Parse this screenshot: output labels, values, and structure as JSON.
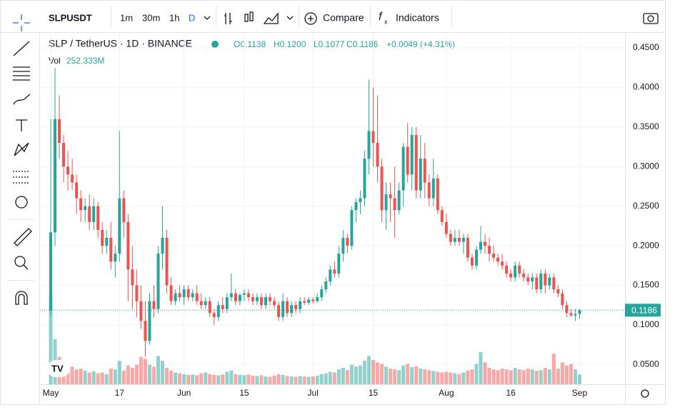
{
  "toolbar": {
    "symbol": "SLPUSDT",
    "intervals": [
      "1m",
      "30m",
      "1h",
      "D"
    ],
    "compare": "Compare",
    "indicators": "Indicators"
  },
  "header": {
    "title": "SLP / TetherUS · 1D · BINANCE",
    "ohlc": [
      "O0.1138",
      "H0.1200",
      "L0.1077",
      "C0.1186",
      "+0.0049 (+4.31%)"
    ],
    "vol_label": "Vol",
    "vol_value": "252.333M"
  },
  "chart_data": {
    "type": "candlestick",
    "up_color": "#26a69a",
    "down_color": "#ef5350",
    "grid": true,
    "x": [
      "May 1",
      "May 2",
      "May 3",
      "May 4",
      "May 5",
      "May 6",
      "May 7",
      "May 8",
      "May 9",
      "May 10",
      "May 11",
      "May 12",
      "May 13",
      "May 14",
      "May 15",
      "May 16",
      "May 17",
      "May 18",
      "May 19",
      "May 20",
      "May 21",
      "May 22",
      "May 23",
      "May 24",
      "May 25",
      "May 26",
      "May 27",
      "May 28",
      "May 29",
      "May 30",
      "May 31",
      "Jun 1",
      "Jun 2",
      "Jun 3",
      "Jun 4",
      "Jun 5",
      "Jun 6",
      "Jun 7",
      "Jun 8",
      "Jun 9",
      "Jun 10",
      "Jun 11",
      "Jun 12",
      "Jun 13",
      "Jun 14",
      "Jun 15",
      "Jun 16",
      "Jun 17",
      "Jun 18",
      "Jun 19",
      "Jun 20",
      "Jun 21",
      "Jun 22",
      "Jun 23",
      "Jun 24",
      "Jun 25",
      "Jun 26",
      "Jun 27",
      "Jun 28",
      "Jun 29",
      "Jun 30",
      "Jul 1",
      "Jul 2",
      "Jul 3",
      "Jul 4",
      "Jul 5",
      "Jul 6",
      "Jul 7",
      "Jul 8",
      "Jul 9",
      "Jul 10",
      "Jul 11",
      "Jul 12",
      "Jul 13",
      "Jul 14",
      "Jul 15",
      "Jul 16",
      "Jul 17",
      "Jul 18",
      "Jul 19",
      "Jul 20",
      "Jul 21",
      "Jul 22",
      "Jul 23",
      "Jul 24",
      "Jul 25",
      "Jul 26",
      "Jul 27",
      "Jul 28",
      "Jul 29",
      "Jul 30",
      "Jul 31",
      "Aug 1",
      "Aug 2",
      "Aug 3",
      "Aug 4",
      "Aug 5",
      "Aug 6",
      "Aug 7",
      "Aug 8",
      "Aug 9",
      "Aug 10",
      "Aug 11",
      "Aug 12",
      "Aug 13",
      "Aug 14",
      "Aug 15",
      "Aug 16",
      "Aug 17",
      "Aug 18",
      "Aug 19",
      "Aug 20",
      "Aug 21",
      "Aug 22",
      "Aug 23",
      "Aug 24",
      "Aug 25",
      "Aug 26",
      "Aug 27",
      "Aug 28",
      "Aug 29",
      "Aug 30",
      "Aug 31",
      "Sep 1"
    ],
    "open": [
      0.118,
      0.217,
      0.36,
      0.33,
      0.3,
      0.29,
      0.28,
      0.26,
      0.245,
      0.25,
      0.23,
      0.25,
      0.22,
      0.2,
      0.21,
      0.18,
      0.19,
      0.26,
      0.23,
      0.17,
      0.15,
      0.13,
      0.105,
      0.08,
      0.13,
      0.12,
      0.19,
      0.21,
      0.15,
      0.13,
      0.14,
      0.135,
      0.145,
      0.135,
      0.14,
      0.13,
      0.125,
      0.13,
      0.115,
      0.11,
      0.125,
      0.12,
      0.135,
      0.14,
      0.13,
      0.138,
      0.14,
      0.135,
      0.13,
      0.135,
      0.125,
      0.135,
      0.13,
      0.125,
      0.11,
      0.13,
      0.115,
      0.125,
      0.12,
      0.13,
      0.128,
      0.132,
      0.13,
      0.135,
      0.145,
      0.155,
      0.17,
      0.165,
      0.19,
      0.21,
      0.2,
      0.245,
      0.255,
      0.26,
      0.31,
      0.345,
      0.33,
      0.3,
      0.245,
      0.265,
      0.26,
      0.245,
      0.27,
      0.325,
      0.29,
      0.34,
      0.27,
      0.31,
      0.28,
      0.26,
      0.285,
      0.245,
      0.23,
      0.215,
      0.205,
      0.21,
      0.205,
      0.21,
      0.185,
      0.175,
      0.195,
      0.205,
      0.2,
      0.19,
      0.185,
      0.18,
      0.175,
      0.165,
      0.16,
      0.175,
      0.165,
      0.16,
      0.155,
      0.16,
      0.145,
      0.165,
      0.15,
      0.16,
      0.145,
      0.14,
      0.125,
      0.115,
      0.112,
      0.1138
    ],
    "high": [
      0.36,
      0.425,
      0.39,
      0.34,
      0.32,
      0.31,
      0.29,
      0.27,
      0.26,
      0.265,
      0.26,
      0.255,
      0.23,
      0.22,
      0.23,
      0.2,
      0.345,
      0.27,
      0.24,
      0.2,
      0.17,
      0.15,
      0.13,
      0.14,
      0.15,
      0.2,
      0.25,
      0.22,
      0.16,
      0.145,
      0.15,
      0.15,
      0.15,
      0.145,
      0.15,
      0.14,
      0.135,
      0.135,
      0.12,
      0.13,
      0.135,
      0.14,
      0.165,
      0.145,
      0.14,
      0.145,
      0.145,
      0.14,
      0.14,
      0.14,
      0.14,
      0.14,
      0.135,
      0.13,
      0.14,
      0.135,
      0.13,
      0.13,
      0.135,
      0.135,
      0.135,
      0.135,
      0.14,
      0.15,
      0.16,
      0.175,
      0.18,
      0.2,
      0.22,
      0.215,
      0.25,
      0.26,
      0.27,
      0.32,
      0.41,
      0.4,
      0.39,
      0.31,
      0.28,
      0.28,
      0.3,
      0.28,
      0.33,
      0.355,
      0.35,
      0.35,
      0.34,
      0.33,
      0.29,
      0.31,
      0.29,
      0.25,
      0.24,
      0.22,
      0.22,
      0.22,
      0.215,
      0.215,
      0.19,
      0.2,
      0.225,
      0.215,
      0.21,
      0.2,
      0.19,
      0.19,
      0.18,
      0.17,
      0.18,
      0.18,
      0.17,
      0.165,
      0.165,
      0.165,
      0.17,
      0.17,
      0.165,
      0.165,
      0.15,
      0.145,
      0.13,
      0.12,
      0.12,
      0.12
    ],
    "low": [
      0.11,
      0.2,
      0.31,
      0.28,
      0.27,
      0.27,
      0.24,
      0.23,
      0.23,
      0.22,
      0.22,
      0.21,
      0.19,
      0.19,
      0.17,
      0.16,
      0.18,
      0.21,
      0.13,
      0.12,
      0.11,
      0.095,
      0.06,
      0.075,
      0.11,
      0.115,
      0.17,
      0.14,
      0.125,
      0.125,
      0.13,
      0.125,
      0.13,
      0.13,
      0.125,
      0.12,
      0.12,
      0.11,
      0.1,
      0.105,
      0.115,
      0.115,
      0.13,
      0.125,
      0.125,
      0.13,
      0.13,
      0.125,
      0.125,
      0.12,
      0.12,
      0.125,
      0.12,
      0.105,
      0.105,
      0.11,
      0.11,
      0.115,
      0.115,
      0.125,
      0.125,
      0.127,
      0.128,
      0.13,
      0.14,
      0.15,
      0.16,
      0.16,
      0.18,
      0.19,
      0.195,
      0.23,
      0.24,
      0.25,
      0.29,
      0.3,
      0.28,
      0.23,
      0.22,
      0.23,
      0.21,
      0.24,
      0.25,
      0.28,
      0.27,
      0.26,
      0.26,
      0.26,
      0.25,
      0.25,
      0.24,
      0.225,
      0.21,
      0.2,
      0.2,
      0.2,
      0.19,
      0.18,
      0.17,
      0.17,
      0.19,
      0.19,
      0.18,
      0.18,
      0.175,
      0.17,
      0.16,
      0.155,
      0.155,
      0.16,
      0.155,
      0.15,
      0.145,
      0.14,
      0.14,
      0.14,
      0.145,
      0.14,
      0.135,
      0.12,
      0.11,
      0.11,
      0.105,
      0.1077
    ],
    "close": [
      0.217,
      0.36,
      0.33,
      0.3,
      0.29,
      0.28,
      0.26,
      0.245,
      0.25,
      0.23,
      0.25,
      0.22,
      0.2,
      0.21,
      0.18,
      0.19,
      0.26,
      0.23,
      0.17,
      0.15,
      0.13,
      0.105,
      0.08,
      0.13,
      0.12,
      0.19,
      0.21,
      0.15,
      0.13,
      0.14,
      0.135,
      0.145,
      0.135,
      0.14,
      0.13,
      0.125,
      0.13,
      0.115,
      0.11,
      0.125,
      0.12,
      0.135,
      0.14,
      0.13,
      0.138,
      0.14,
      0.135,
      0.13,
      0.135,
      0.125,
      0.135,
      0.13,
      0.125,
      0.11,
      0.13,
      0.115,
      0.125,
      0.12,
      0.13,
      0.128,
      0.132,
      0.13,
      0.135,
      0.145,
      0.155,
      0.17,
      0.165,
      0.19,
      0.21,
      0.2,
      0.245,
      0.255,
      0.26,
      0.31,
      0.345,
      0.33,
      0.3,
      0.245,
      0.265,
      0.26,
      0.245,
      0.27,
      0.325,
      0.29,
      0.34,
      0.27,
      0.31,
      0.28,
      0.26,
      0.285,
      0.245,
      0.23,
      0.215,
      0.205,
      0.21,
      0.205,
      0.21,
      0.185,
      0.175,
      0.195,
      0.205,
      0.2,
      0.19,
      0.185,
      0.18,
      0.175,
      0.165,
      0.16,
      0.175,
      0.165,
      0.16,
      0.155,
      0.16,
      0.145,
      0.165,
      0.15,
      0.16,
      0.145,
      0.14,
      0.125,
      0.115,
      0.112,
      0.1137,
      0.1186
    ],
    "volume": [
      2300,
      1150,
      700,
      500,
      420,
      450,
      380,
      400,
      350,
      300,
      330,
      280,
      300,
      260,
      400,
      380,
      600,
      350,
      480,
      420,
      500,
      700,
      650,
      500,
      450,
      720,
      600,
      420,
      350,
      300,
      280,
      260,
      240,
      250,
      230,
      280,
      300,
      260,
      240,
      230,
      250,
      320,
      350,
      260,
      240,
      230,
      250,
      220,
      210,
      230,
      200,
      190,
      220,
      260,
      240,
      210,
      200,
      190,
      210,
      200,
      190,
      200,
      220,
      260,
      280,
      320,
      300,
      380,
      420,
      360,
      500,
      450,
      480,
      600,
      720,
      620,
      560,
      520,
      450,
      400,
      380,
      360,
      480,
      520,
      440,
      460,
      400,
      380,
      360,
      340,
      320,
      300,
      320,
      300,
      280,
      260,
      300,
      350,
      380,
      520,
      820,
      560,
      420,
      380,
      360,
      400,
      380,
      360,
      420,
      380,
      360,
      400,
      380,
      340,
      360,
      420,
      380,
      780,
      400,
      560,
      480,
      520,
      380,
      252.333
    ],
    "last_price_label": "0.1186",
    "ylim": [
      0.025,
      0.469
    ],
    "yticks": [
      {
        "value": 0.05,
        "label": "0.0500"
      },
      {
        "value": 0.1,
        "label": "0.1000"
      },
      {
        "value": 0.15,
        "label": "0.1500"
      },
      {
        "value": 0.2,
        "label": "0.2000"
      },
      {
        "value": 0.25,
        "label": "0.2500"
      },
      {
        "value": 0.3,
        "label": "0.3000"
      },
      {
        "value": 0.35,
        "label": "0.3500"
      },
      {
        "value": 0.4,
        "label": "0.4000"
      },
      {
        "value": 0.45,
        "label": "0.4500"
      }
    ],
    "xticks": [
      {
        "value": "May 1",
        "label": "May"
      },
      {
        "value": "May 17",
        "label": "17"
      },
      {
        "value": "Jun 1",
        "label": "Jun"
      },
      {
        "value": "Jun 15",
        "label": "15"
      },
      {
        "value": "Jul 1",
        "label": "Jul"
      },
      {
        "value": "Jul 15",
        "label": "15"
      },
      {
        "value": "Aug 1",
        "label": "Aug"
      },
      {
        "value": "Aug 16",
        "label": "16"
      },
      {
        "value": "Sep 1",
        "label": "Sep"
      }
    ]
  }
}
